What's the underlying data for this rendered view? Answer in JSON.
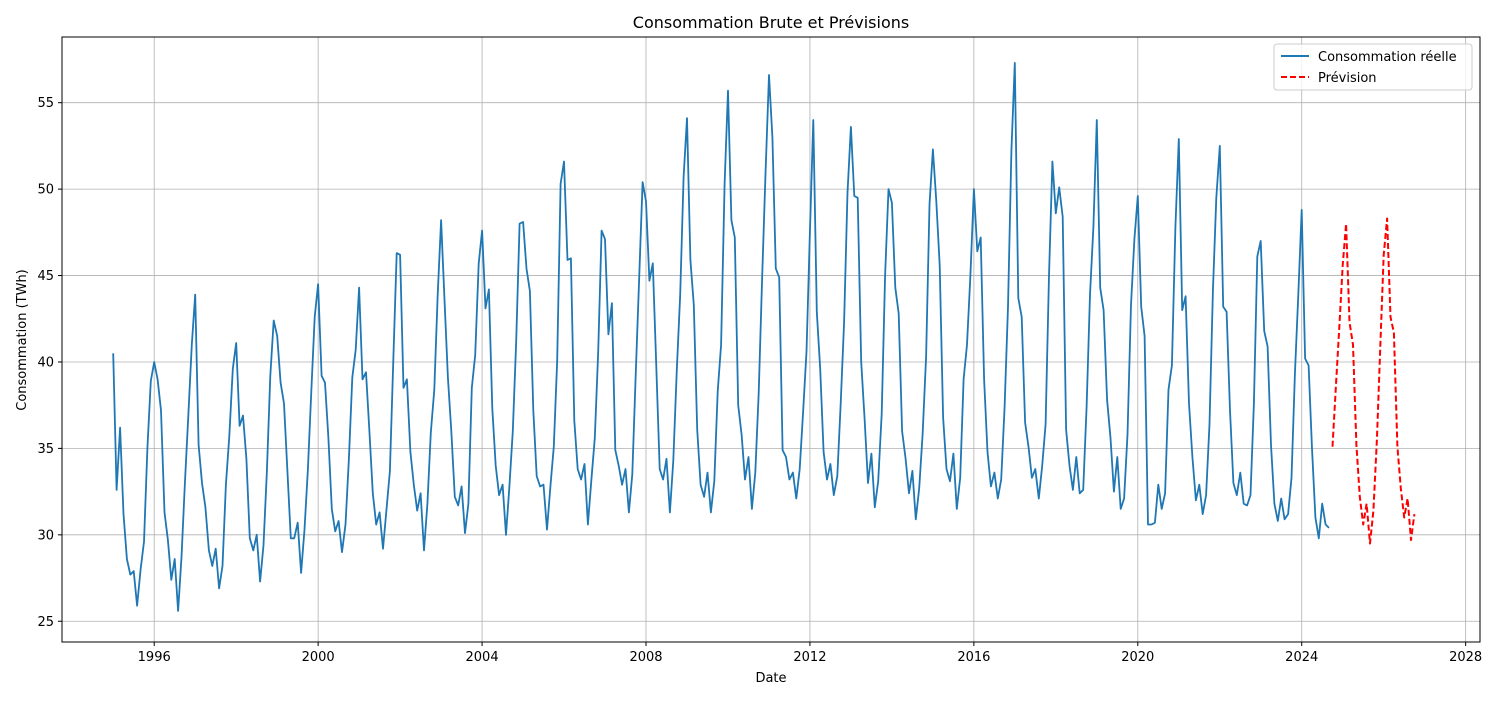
{
  "chart_data": {
    "type": "line",
    "title": "Consommation Brute et Prévisions",
    "xlabel": "Date",
    "ylabel": "Consommation (TWh)",
    "xlim": [
      1993.75,
      2028.35
    ],
    "ylim": [
      23.8,
      58.8
    ],
    "x_ticks": [
      1996,
      2000,
      2004,
      2008,
      2012,
      2016,
      2020,
      2024,
      2028
    ],
    "y_ticks": [
      25,
      30,
      35,
      40,
      45,
      50,
      55
    ],
    "grid": true,
    "legend_position": "top-right",
    "series": [
      {
        "name": "Consommation réelle",
        "color": "#1f77b4",
        "dash": "solid",
        "start_year": 1995,
        "step_months": 1,
        "values": [
          40.5,
          32.6,
          36.2,
          31.2,
          28.6,
          27.7,
          27.9,
          25.9,
          28.0,
          29.6,
          35.0,
          38.9,
          40.0,
          39.0,
          37.2,
          31.3,
          29.7,
          27.4,
          28.6,
          25.6,
          28.7,
          33.0,
          37.0,
          41.0,
          43.9,
          35.2,
          33.0,
          31.6,
          29.1,
          28.2,
          29.2,
          26.9,
          28.2,
          32.9,
          35.7,
          39.6,
          41.1,
          36.3,
          36.9,
          34.4,
          29.8,
          29.1,
          30.0,
          27.3,
          29.4,
          33.7,
          39.2,
          42.4,
          41.5,
          38.8,
          37.6,
          33.7,
          29.8,
          29.8,
          30.7,
          27.8,
          30.3,
          33.8,
          38.3,
          42.6,
          44.5,
          39.2,
          38.8,
          35.6,
          31.5,
          30.2,
          30.8,
          29.0,
          30.6,
          34.4,
          39.1,
          40.7,
          44.3,
          39.0,
          39.4,
          36.0,
          32.4,
          30.6,
          31.3,
          29.2,
          31.4,
          33.7,
          40.1,
          46.3,
          46.2,
          38.5,
          39.0,
          34.8,
          32.9,
          31.4,
          32.4,
          29.1,
          31.8,
          35.9,
          38.4,
          43.9,
          48.2,
          43.6,
          39.1,
          36.0,
          32.2,
          31.7,
          32.8,
          30.1,
          31.8,
          38.5,
          40.4,
          45.7,
          47.6,
          43.1,
          44.2,
          37.3,
          34.0,
          32.3,
          32.9,
          30.0,
          32.8,
          36.0,
          41.2,
          48.0,
          48.1,
          45.4,
          44.1,
          37.2,
          33.4,
          32.8,
          32.9,
          30.3,
          32.8,
          35.1,
          40.1,
          50.3,
          51.6,
          45.9,
          46.0,
          36.6,
          33.8,
          33.2,
          34.1,
          30.6,
          33.2,
          35.6,
          40.6,
          47.6,
          47.1,
          41.6,
          43.4,
          34.9,
          34.0,
          32.9,
          33.8,
          31.3,
          33.5,
          39.4,
          44.9,
          50.4,
          49.3,
          44.7,
          45.7,
          39.9,
          33.8,
          33.2,
          34.4,
          31.3,
          34.3,
          39.4,
          43.9,
          50.7,
          54.1,
          45.9,
          43.3,
          36.1,
          32.9,
          32.2,
          33.6,
          31.3,
          33.1,
          38.3,
          41.0,
          50.3,
          55.7,
          48.2,
          47.2,
          37.5,
          35.8,
          33.2,
          34.5,
          31.5,
          33.6,
          38.2,
          44.8,
          50.9,
          56.6,
          53.0,
          45.4,
          44.9,
          34.9,
          34.5,
          33.2,
          33.6,
          32.1,
          33.8,
          37.1,
          40.6,
          47.5,
          54.0,
          42.9,
          39.6,
          34.8,
          33.2,
          34.1,
          32.3,
          33.4,
          37.6,
          42.3,
          49.8,
          53.6,
          49.6,
          49.5,
          40.0,
          36.7,
          33.0,
          34.7,
          31.6,
          33.1,
          37.0,
          45.0,
          50.0,
          49.2,
          44.3,
          42.8,
          36.0,
          34.4,
          32.4,
          33.7,
          30.9,
          32.7,
          35.8,
          40.3,
          49.1,
          52.3,
          49.3,
          45.6,
          36.8,
          33.8,
          33.1,
          34.7,
          31.5,
          33.3,
          39.0,
          41.0,
          45.0,
          50.0,
          46.4,
          47.2,
          39.0,
          34.8,
          32.8,
          33.6,
          32.1,
          33.2,
          37.4,
          43.2,
          52.2,
          57.3,
          43.7,
          42.6,
          36.5,
          35.1,
          33.3,
          33.8,
          32.1,
          34.0,
          36.4,
          45.0,
          51.6,
          48.6,
          50.1,
          48.4,
          36.1,
          34.0,
          32.6,
          34.5,
          32.4,
          32.6,
          37.4,
          43.9,
          47.8,
          54.0,
          44.3,
          43.0,
          37.8,
          35.6,
          32.5,
          34.5,
          31.5,
          32.1,
          35.8,
          43.3,
          47.1,
          49.6,
          43.2,
          41.5,
          30.6,
          30.6,
          30.7,
          32.9,
          31.5,
          32.4,
          38.4,
          39.8,
          47.8,
          52.9,
          43.0,
          43.8,
          37.6,
          34.5,
          32.0,
          32.9,
          31.2,
          32.3,
          36.4,
          44.1,
          49.5,
          52.5,
          43.2,
          42.9,
          37.2,
          33.0,
          32.3,
          33.6,
          31.8,
          31.7,
          32.3,
          37.6,
          46.1,
          47.0,
          41.8,
          40.9,
          35.2,
          31.8,
          30.8,
          32.1,
          30.9,
          31.2,
          33.3,
          39.3,
          43.9,
          48.8,
          40.2,
          39.8,
          35.0,
          31.0,
          29.8,
          31.8,
          30.6,
          30.4
        ]
      },
      {
        "name": "Prévision",
        "color": "#ff0000",
        "dash": "dashed",
        "start_year": 2024.75,
        "step_months": 1,
        "values": [
          35.1,
          38.6,
          42.0,
          45.6,
          48.0,
          42.3,
          41.0,
          35.2,
          32.2,
          30.6,
          31.8,
          29.5,
          31.4,
          35.5,
          40.9,
          46.2,
          48.3,
          42.6,
          41.7,
          35.1,
          32.7,
          31.0,
          32.1,
          29.7,
          31.2
        ]
      }
    ]
  }
}
